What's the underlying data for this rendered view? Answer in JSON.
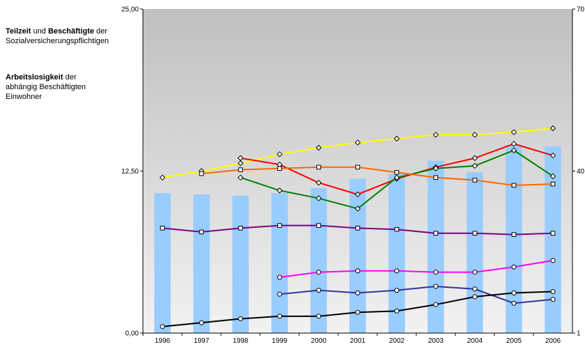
{
  "legend": {
    "block1": {
      "bold1": "Teilzeit",
      "text1": " und ",
      "bold2": "Beschäftigte",
      "text2": " der",
      "line2": "Sozialversicherungspflichtigen"
    },
    "block2": {
      "bold1": "Arbeitslosigkeit",
      "text1": " der",
      "line2": "abhängig Beschäftigten",
      "line3": "Einwohner"
    }
  },
  "chart_data": {
    "type": "bar+line",
    "title": "",
    "xlabel": "",
    "ylabel": "",
    "categories": [
      "1996",
      "1997",
      "1998",
      "1999",
      "2000",
      "2001",
      "2002",
      "2003",
      "2004",
      "2005",
      "2006"
    ],
    "left_axis": {
      "ylim": [
        0,
        25
      ],
      "ticks": [
        "0,00",
        "12,50",
        "25,00"
      ]
    },
    "right_axis": {
      "ticks": [
        "1",
        "40",
        "70"
      ]
    },
    "grid": false,
    "bars": {
      "color": "#99ccff",
      "values": [
        10.8,
        10.7,
        10.6,
        10.8,
        11.2,
        11.9,
        12.3,
        13.3,
        12.4,
        14.5,
        14.4
      ]
    },
    "series": [
      {
        "color": "#ffff00",
        "marker": "diamond",
        "values": [
          12.0,
          12.5,
          13.1,
          13.8,
          14.3,
          14.7,
          15.0,
          15.3,
          15.3,
          15.5,
          15.8
        ]
      },
      {
        "color": "#ff0000",
        "marker": "diamond",
        "values": [
          null,
          null,
          13.5,
          13.0,
          11.6,
          10.7,
          11.9,
          12.8,
          13.5,
          14.6,
          13.7
        ]
      },
      {
        "color": "#008000",
        "marker": "diamond",
        "values": [
          null,
          null,
          12.0,
          11.0,
          10.4,
          9.6,
          12.0,
          12.7,
          12.9,
          14.1,
          12.1
        ]
      },
      {
        "color": "#ff6600",
        "marker": "square",
        "values": [
          null,
          12.3,
          12.6,
          12.7,
          12.8,
          12.8,
          12.4,
          12.0,
          11.8,
          11.4,
          11.5
        ]
      },
      {
        "color": "#800080",
        "marker": "square",
        "values": [
          8.1,
          7.8,
          8.1,
          8.3,
          8.3,
          8.1,
          8.0,
          7.7,
          7.7,
          7.6,
          7.7
        ]
      },
      {
        "color": "#ff00ff",
        "marker": "circle",
        "values": [
          null,
          null,
          null,
          4.3,
          4.7,
          4.8,
          4.8,
          4.7,
          4.7,
          5.1,
          5.6
        ]
      },
      {
        "color": "#333399",
        "marker": "circle",
        "values": [
          null,
          null,
          null,
          3.0,
          3.3,
          3.1,
          3.3,
          3.6,
          3.4,
          2.3,
          2.6
        ]
      },
      {
        "color": "#000000",
        "marker": "circle",
        "values": [
          0.5,
          0.8,
          1.1,
          1.3,
          1.3,
          1.6,
          1.7,
          2.2,
          2.8,
          3.1,
          3.2
        ]
      }
    ]
  }
}
